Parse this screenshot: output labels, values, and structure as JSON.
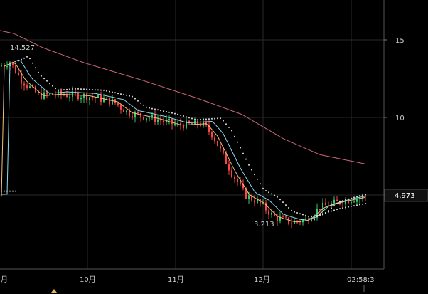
{
  "chart_data": {
    "type": "line",
    "title": "",
    "xlabel": "",
    "ylabel": "",
    "y_ticks": [
      {
        "value": 15,
        "label": "15"
      },
      {
        "value": 10,
        "label": "10"
      }
    ],
    "x_ticks": [
      {
        "label": "月"
      },
      {
        "label": "10月"
      },
      {
        "label": "11月"
      },
      {
        "label": "12月"
      }
    ],
    "time_label": "02:58:3",
    "last_price_label": "4.973",
    "annotations": [
      {
        "label": "14.527",
        "kind": "high"
      },
      {
        "label": "3.213",
        "kind": "low"
      }
    ],
    "grid": true,
    "colors": {
      "background": "#000000",
      "grid": "#2a2a2a",
      "up": "#33cc66",
      "down": "#ff4444",
      "ma_short": "#f2c27b",
      "ma_mid": "#88ddee",
      "ma_long": "#cc6677",
      "dotted": "#dddddd",
      "text": "#cccccc",
      "last_price_box": "#111111"
    }
  }
}
